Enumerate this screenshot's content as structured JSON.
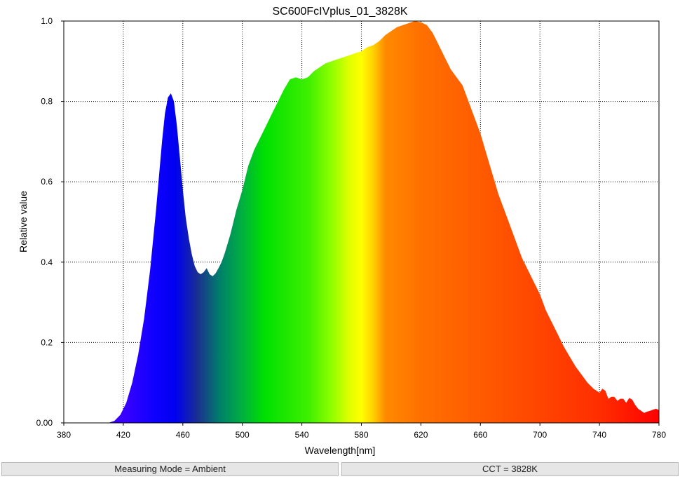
{
  "chart_data": {
    "type": "area",
    "title": "SC600FcIVplus_01_3828K",
    "xlabel": "Wavelength[nm]",
    "ylabel": "Relative value",
    "xlim": [
      380,
      780
    ],
    "ylim": [
      0,
      1.0
    ],
    "x_ticks": [
      380,
      420,
      460,
      500,
      540,
      580,
      620,
      660,
      700,
      740,
      780
    ],
    "x_tick_labels": [
      "380",
      "420",
      "460",
      "500",
      "540",
      "580",
      "620",
      "660",
      "700",
      "740",
      "780"
    ],
    "y_ticks": [
      0,
      0.2,
      0.4,
      0.6,
      0.8,
      1.0
    ],
    "y_tick_labels": [
      "0.00",
      "0.2",
      "0.4",
      "0.6",
      "0.8",
      "1.0"
    ],
    "grid": true,
    "fill": "visible-spectrum gradient",
    "series": [
      {
        "x": [
          410,
          414,
          418,
          422,
          426,
          430,
          434,
          438,
          442,
          446,
          448,
          450,
          452,
          454,
          456,
          458,
          460,
          462,
          464,
          466,
          468,
          470,
          472,
          474,
          476,
          478,
          480,
          482,
          484,
          486,
          488,
          490,
          492,
          494,
          496,
          498,
          500,
          504,
          508,
          512,
          516,
          520,
          524,
          528,
          532,
          536,
          540,
          544,
          548,
          552,
          556,
          560,
          564,
          568,
          572,
          576,
          580,
          584,
          588,
          592,
          596,
          600,
          604,
          608,
          612,
          616,
          620,
          624,
          628,
          632,
          636,
          640,
          644,
          648,
          652,
          656,
          660,
          664,
          668,
          672,
          676,
          680,
          684,
          688,
          692,
          696,
          700,
          704,
          708,
          712,
          716,
          720,
          724,
          728,
          732,
          736,
          740,
          742,
          744,
          746,
          748,
          750,
          752,
          754,
          756,
          758,
          760,
          762,
          764,
          766,
          768,
          770,
          772,
          774,
          776,
          778,
          780
        ],
        "values": [
          0.0,
          0.005,
          0.02,
          0.05,
          0.1,
          0.17,
          0.26,
          0.38,
          0.53,
          0.7,
          0.77,
          0.81,
          0.82,
          0.8,
          0.74,
          0.66,
          0.58,
          0.51,
          0.46,
          0.42,
          0.39,
          0.375,
          0.37,
          0.375,
          0.385,
          0.37,
          0.365,
          0.372,
          0.385,
          0.4,
          0.42,
          0.445,
          0.47,
          0.5,
          0.53,
          0.555,
          0.58,
          0.64,
          0.68,
          0.71,
          0.74,
          0.77,
          0.8,
          0.83,
          0.855,
          0.86,
          0.855,
          0.86,
          0.875,
          0.885,
          0.895,
          0.9,
          0.905,
          0.91,
          0.915,
          0.92,
          0.925,
          0.935,
          0.94,
          0.95,
          0.965,
          0.975,
          0.985,
          0.99,
          0.995,
          1.0,
          0.997,
          0.99,
          0.97,
          0.94,
          0.91,
          0.88,
          0.86,
          0.84,
          0.8,
          0.76,
          0.72,
          0.67,
          0.62,
          0.57,
          0.53,
          0.49,
          0.45,
          0.41,
          0.38,
          0.35,
          0.32,
          0.28,
          0.25,
          0.22,
          0.19,
          0.165,
          0.14,
          0.12,
          0.1,
          0.085,
          0.075,
          0.085,
          0.08,
          0.06,
          0.065,
          0.065,
          0.055,
          0.06,
          0.06,
          0.05,
          0.062,
          0.058,
          0.045,
          0.035,
          0.03,
          0.025,
          0.028,
          0.03,
          0.033,
          0.035,
          0.032
        ]
      }
    ]
  },
  "status": {
    "left": "Measuring Mode = Ambient",
    "right": "CCT = 3828K"
  }
}
